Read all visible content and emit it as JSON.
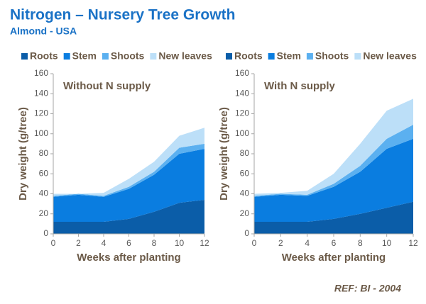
{
  "header": {
    "title": "Nitrogen – Nursery Tree Growth",
    "subtitle": "Almond - USA"
  },
  "footer": {
    "ref": "REF:  BI - 2004"
  },
  "chart_data": [
    {
      "type": "area",
      "stacked": true,
      "title": "Without N supply",
      "x_label": "Weeks after planting",
      "y_label": "Dry weight (g/tree)",
      "x": [
        0,
        2,
        4,
        6,
        8,
        10,
        12
      ],
      "xlim": [
        0,
        12
      ],
      "xticks": [
        0,
        2,
        4,
        6,
        8,
        10,
        12
      ],
      "ylim": [
        0,
        160
      ],
      "yticks": [
        0,
        20,
        40,
        60,
        80,
        100,
        120,
        140,
        160
      ],
      "series": [
        {
          "name": "Roots",
          "color": "#0b5da8",
          "values": [
            12,
            12,
            12,
            15,
            22,
            31,
            34
          ]
        },
        {
          "name": "Stem",
          "color": "#0a7de0",
          "values": [
            25,
            27,
            25,
            30,
            37,
            49,
            51
          ]
        },
        {
          "name": "Shoots",
          "color": "#5bb0f0",
          "values": [
            1,
            1,
            1,
            2,
            3,
            6,
            5
          ]
        },
        {
          "name": "New leaves",
          "color": "#bcdff8",
          "values": [
            2,
            0,
            3,
            8,
            10,
            12,
            16
          ]
        }
      ]
    },
    {
      "type": "area",
      "stacked": true,
      "title": "With N supply",
      "x_label": "Weeks after planting",
      "y_label": "Dry weight (g/tree)",
      "x": [
        0,
        2,
        4,
        6,
        8,
        10,
        12
      ],
      "xlim": [
        0,
        12
      ],
      "xticks": [
        0,
        2,
        4,
        6,
        8,
        10,
        12
      ],
      "ylim": [
        0,
        160
      ],
      "yticks": [
        0,
        20,
        40,
        60,
        80,
        100,
        120,
        140,
        160
      ],
      "series": [
        {
          "name": "Roots",
          "color": "#0b5da8",
          "values": [
            12,
            12,
            12,
            15,
            20,
            26,
            32
          ]
        },
        {
          "name": "Stem",
          "color": "#0a7de0",
          "values": [
            25,
            27,
            26,
            32,
            42,
            59,
            63
          ]
        },
        {
          "name": "Shoots",
          "color": "#5bb0f0",
          "values": [
            1,
            1,
            1,
            3,
            6,
            10,
            14
          ]
        },
        {
          "name": "New leaves",
          "color": "#bcdff8",
          "values": [
            2,
            1,
            4,
            10,
            22,
            28,
            26
          ]
        }
      ]
    }
  ]
}
